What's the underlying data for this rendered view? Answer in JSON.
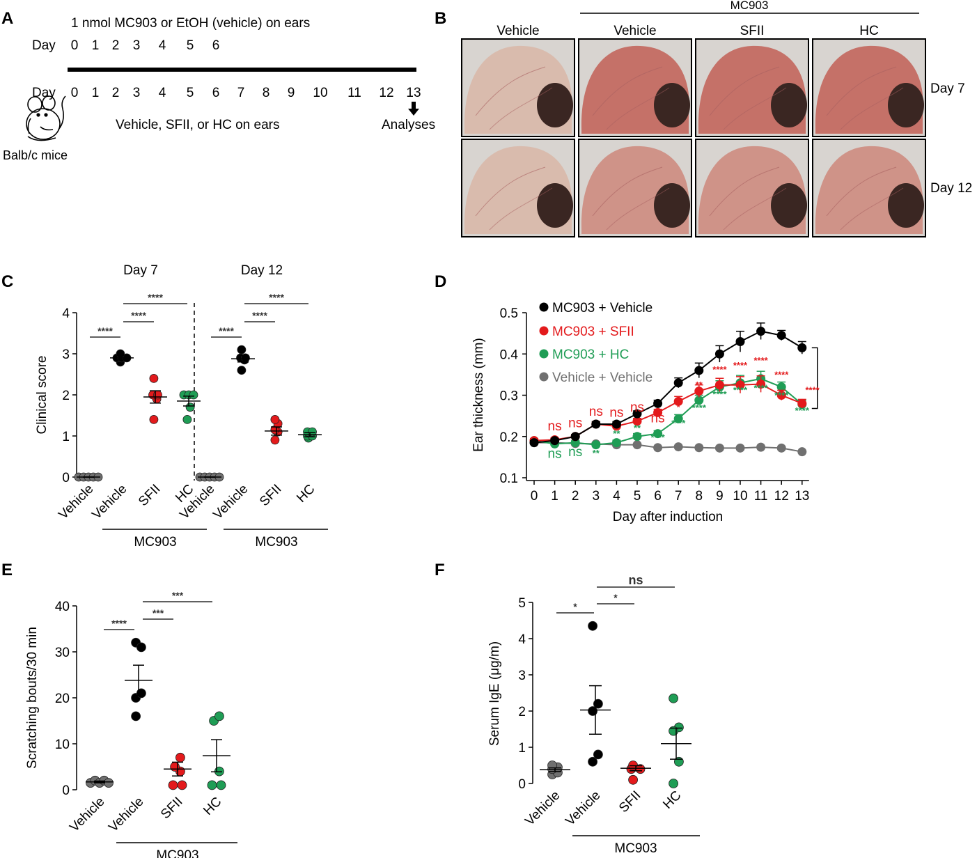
{
  "panel_letters": [
    "A",
    "B",
    "C",
    "D",
    "E",
    "F"
  ],
  "panel_a": {
    "top_line": "1 nmol MC903  or EtOH  (vehicle) on ears",
    "day_label_top": "Day",
    "days_top": [
      "0",
      "1",
      "2",
      "3",
      "4",
      "5",
      "6"
    ],
    "day_label_bottom": "Day",
    "days_bottom": [
      "0",
      "1",
      "2",
      "3",
      "4",
      "5",
      "6",
      "7",
      "8",
      "9",
      "10",
      "11",
      "12",
      "13"
    ],
    "treatment_line": "Vehicle, SFII,  or HC  on ears",
    "analyses_label": "Analyses",
    "mouse_label": "Balb/c mice"
  },
  "panel_b": {
    "group_label": "MC903",
    "columns": [
      "Vehicle",
      "Vehicle",
      "SFII",
      "HC"
    ],
    "rows": [
      "Day 7",
      "Day 12"
    ],
    "colors": {
      "photo_bg": "#d8d4d0",
      "ear_normal": "#d9b9ab",
      "ear_inflamed": "#c46c62",
      "ear_mild": "#cf8f84",
      "canal": "#3a2622"
    }
  },
  "chart_data": [
    {
      "panel": "C",
      "type": "scatter",
      "ylabel": "Clinical score",
      "ylim": [
        0,
        4
      ],
      "yticks": [
        0,
        1,
        2,
        3,
        4
      ],
      "subplots": [
        {
          "title": "Day 7",
          "categories": [
            "Vehicle",
            "Vehicle",
            "SFII",
            "HC"
          ],
          "group_label": "MC903",
          "colors": [
            "#707070",
            "#000000",
            "#e31a1c",
            "#1f9d55"
          ],
          "points": [
            [
              0,
              0,
              0,
              0,
              0
            ],
            [
              2.8,
              2.9,
              2.9,
              2.9,
              3.0
            ],
            [
              1.4,
              1.9,
              2.0,
              2.0,
              2.4
            ],
            [
              1.4,
              1.7,
              2.0,
              2.0,
              2.0
            ]
          ],
          "means": [
            0,
            2.9,
            1.95,
            1.85
          ],
          "sems": [
            0,
            0.05,
            0.15,
            0.12
          ],
          "comparisons": [
            {
              "from": 0,
              "to": 1,
              "label": "****"
            },
            {
              "from": 1,
              "to": 2,
              "label": "****"
            },
            {
              "from": 1,
              "to": 3,
              "label": "****"
            }
          ]
        },
        {
          "title": "Day 12",
          "categories": [
            "Vehicle",
            "Vehicle",
            "SFII",
            "HC"
          ],
          "group_label": "MC903",
          "colors": [
            "#707070",
            "#000000",
            "#e31a1c",
            "#1f9d55"
          ],
          "points": [
            [
              0,
              0,
              0,
              0,
              0
            ],
            [
              2.6,
              2.85,
              2.9,
              2.9,
              3.1
            ],
            [
              0.9,
              1.1,
              1.15,
              1.3,
              1.4
            ],
            [
              0.95,
              1.0,
              1.0,
              1.1,
              1.1
            ]
          ],
          "means": [
            0,
            2.88,
            1.12,
            1.03
          ],
          "sems": [
            0,
            0.08,
            0.1,
            0.05
          ],
          "comparisons": [
            {
              "from": 0,
              "to": 1,
              "label": "****"
            },
            {
              "from": 1,
              "to": 2,
              "label": "****"
            },
            {
              "from": 1,
              "to": 3,
              "label": "****"
            }
          ]
        }
      ]
    },
    {
      "panel": "D",
      "type": "line",
      "xlabel": "Day after induction",
      "ylabel": "Ear thickness (mm)",
      "x": [
        0,
        1,
        2,
        3,
        4,
        5,
        6,
        7,
        8,
        9,
        10,
        11,
        12,
        13
      ],
      "ylim": [
        0.1,
        0.5
      ],
      "yticks": [
        0.1,
        0.2,
        0.3,
        0.4,
        0.5
      ],
      "series": [
        {
          "name": "MC903 + Vehicle",
          "color": "#000000",
          "values": [
            0.185,
            0.19,
            0.2,
            0.23,
            0.23,
            0.255,
            0.28,
            0.33,
            0.36,
            0.4,
            0.43,
            0.455,
            0.445,
            0.415
          ],
          "errors": [
            0.005,
            0.005,
            0.005,
            0.006,
            0.006,
            0.007,
            0.008,
            0.012,
            0.018,
            0.02,
            0.025,
            0.02,
            0.012,
            0.015
          ]
        },
        {
          "name": "MC903 + SFII",
          "color": "#e31a1c",
          "values": [
            0.19,
            0.192,
            0.2,
            0.23,
            0.225,
            0.237,
            0.258,
            0.285,
            0.31,
            0.325,
            0.325,
            0.327,
            0.3,
            0.28
          ],
          "errors": [
            0.005,
            0.005,
            0.005,
            0.006,
            0.006,
            0.007,
            0.008,
            0.012,
            0.015,
            0.016,
            0.02,
            0.02,
            0.012,
            0.01
          ]
        },
        {
          "name": "MC903 + HC",
          "color": "#1f9d55",
          "values": [
            0.19,
            0.182,
            0.185,
            0.18,
            0.185,
            0.2,
            0.207,
            0.243,
            0.288,
            0.32,
            0.33,
            0.34,
            0.32,
            0.278
          ],
          "errors": [
            0.005,
            0.005,
            0.005,
            0.005,
            0.006,
            0.007,
            0.007,
            0.01,
            0.012,
            0.015,
            0.018,
            0.018,
            0.012,
            0.01
          ]
        },
        {
          "name": "Vehicle + Vehicle",
          "color": "#707070",
          "values": [
            0.185,
            0.185,
            0.183,
            0.182,
            0.18,
            0.18,
            0.173,
            0.175,
            0.173,
            0.172,
            0.172,
            0.174,
            0.172,
            0.163
          ],
          "errors": [
            0.004,
            0.004,
            0.004,
            0.004,
            0.004,
            0.004,
            0.004,
            0.004,
            0.004,
            0.004,
            0.004,
            0.004,
            0.004,
            0.004
          ]
        }
      ],
      "annotations": [
        {
          "label": "ns",
          "color": "#e31a1c",
          "x": 1,
          "y": 0.215
        },
        {
          "label": "ns",
          "color": "#e31a1c",
          "x": 2,
          "y": 0.222
        },
        {
          "label": "ns",
          "color": "#e31a1c",
          "x": 3,
          "y": 0.25
        },
        {
          "label": "ns",
          "color": "#e31a1c",
          "x": 4,
          "y": 0.248
        },
        {
          "label": "ns",
          "color": "#e31a1c",
          "x": 5,
          "y": 0.26
        },
        {
          "label": "ns",
          "color": "#e31a1c",
          "x": 6,
          "y": 0.234
        },
        {
          "label": "*",
          "color": "#e31a1c",
          "x": 7,
          "y": 0.264
        },
        {
          "label": "**",
          "color": "#e31a1c",
          "x": 8,
          "y": 0.318
        },
        {
          "label": "****",
          "color": "#e31a1c",
          "x": 9,
          "y": 0.355
        },
        {
          "label": "****",
          "color": "#e31a1c",
          "x": 10,
          "y": 0.365
        },
        {
          "label": "****",
          "color": "#e31a1c",
          "x": 11,
          "y": 0.377
        },
        {
          "label": "****",
          "color": "#e31a1c",
          "x": 12,
          "y": 0.342
        },
        {
          "label": "****",
          "color": "#e31a1c",
          "x": 13.5,
          "y": 0.305
        },
        {
          "label": "ns",
          "color": "#1f9d55",
          "x": 1,
          "y": 0.148
        },
        {
          "label": "ns",
          "color": "#1f9d55",
          "x": 2,
          "y": 0.152
        },
        {
          "label": "**",
          "color": "#1f9d55",
          "x": 3,
          "y": 0.152
        },
        {
          "label": "**",
          "color": "#1f9d55",
          "x": 4,
          "y": 0.2
        },
        {
          "label": "**",
          "color": "#1f9d55",
          "x": 5,
          "y": 0.213
        },
        {
          "label": "****",
          "color": "#1f9d55",
          "x": 6,
          "y": 0.19
        },
        {
          "label": "****",
          "color": "#1f9d55",
          "x": 7,
          "y": 0.225
        },
        {
          "label": "****",
          "color": "#1f9d55",
          "x": 8,
          "y": 0.262
        },
        {
          "label": "****",
          "color": "#1f9d55",
          "x": 9,
          "y": 0.295
        },
        {
          "label": "****",
          "color": "#1f9d55",
          "x": 10,
          "y": 0.305
        },
        {
          "label": "****",
          "color": "#1f9d55",
          "x": 11,
          "y": 0.31
        },
        {
          "label": "****",
          "color": "#1f9d55",
          "x": 12,
          "y": 0.292
        },
        {
          "label": "****",
          "color": "#1f9d55",
          "x": 13,
          "y": 0.255
        }
      ]
    },
    {
      "panel": "E",
      "type": "scatter",
      "ylabel": "Scratching bouts/30 min",
      "ylim": [
        0,
        40
      ],
      "yticks": [
        0,
        10,
        20,
        30,
        40
      ],
      "categories": [
        "Vehicle",
        "Vehicle",
        "SFII",
        "HC"
      ],
      "group_label": "MC903",
      "colors": [
        "#707070",
        "#000000",
        "#e31a1c",
        "#1f9d55"
      ],
      "points": [
        [
          1.5,
          2,
          1.5,
          2,
          1.5
        ],
        [
          32,
          31,
          20,
          21,
          16
        ],
        [
          1,
          4,
          5,
          7,
          1
        ],
        [
          1,
          4,
          15,
          16,
          1
        ]
      ],
      "means": [
        1.7,
        23.8,
        4.5,
        7.4
      ],
      "sems": [
        0.2,
        3.3,
        1.5,
        3.5
      ],
      "comparisons": [
        {
          "from": 0,
          "to": 1,
          "label": "****"
        },
        {
          "from": 1,
          "to": 2,
          "label": "***"
        },
        {
          "from": 1,
          "to": 3,
          "label": "***"
        }
      ]
    },
    {
      "panel": "F",
      "type": "scatter",
      "ylabel": "Serum IgE  (μg/m)",
      "ylim": [
        0,
        5
      ],
      "yticks": [
        0,
        1,
        2,
        3,
        4,
        5
      ],
      "categories": [
        "Vehicle",
        "Vehicle",
        "SFII",
        "HC"
      ],
      "group_label": "MC903",
      "colors": [
        "#707070",
        "#000000",
        "#e31a1c",
        "#1f9d55"
      ],
      "points": [
        [
          0.25,
          0.3,
          0.4,
          0.45,
          0.5
        ],
        [
          4.35,
          2.2,
          2.0,
          0.8,
          0.6
        ],
        [
          0.45,
          0.4,
          0.5,
          0.4,
          0.1
        ],
        [
          2.35,
          1.55,
          1.45,
          0.6,
          0.0
        ]
      ],
      "means": [
        0.38,
        2.03,
        0.42,
        1.1
      ],
      "sems": [
        0.05,
        0.67,
        0.07,
        0.43
      ],
      "comparisons": [
        {
          "from": 0,
          "to": 1,
          "label": "*"
        },
        {
          "from": 1,
          "to": 2,
          "label": "*"
        },
        {
          "from": 1,
          "to": 3,
          "label": "ns"
        }
      ]
    }
  ]
}
